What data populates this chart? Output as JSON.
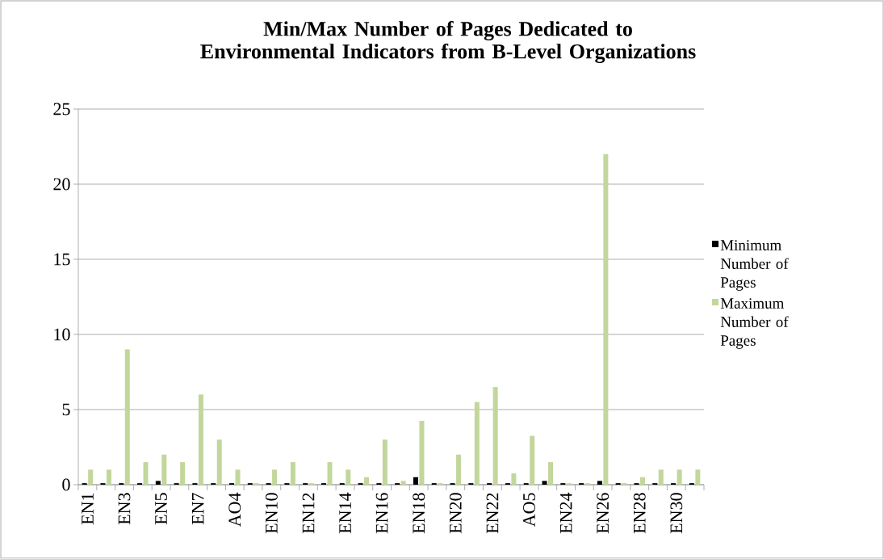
{
  "chart_data": {
    "type": "bar",
    "title": "Min/Max Number of Pages Dedicated to Environmental Indicators from B-Level Organizations",
    "categories": [
      "EN1",
      null,
      "EN3",
      null,
      "EN5",
      null,
      "EN7",
      null,
      "AO4",
      null,
      "EN10",
      null,
      "EN12",
      null,
      "EN14",
      null,
      "EN16",
      null,
      "EN18",
      null,
      "EN20",
      null,
      "EN22",
      null,
      "AO5",
      null,
      "EN24",
      null,
      "EN26",
      null,
      "EN28",
      null,
      "EN30",
      null
    ],
    "series": [
      {
        "name": "Minimum Number of Pages",
        "color": "#000000",
        "values": [
          0.1,
          0.1,
          0.1,
          0.1,
          0.25,
          0.1,
          0.1,
          0.1,
          0.1,
          0.1,
          0.1,
          0.1,
          0.1,
          0.1,
          0.1,
          0.1,
          0.1,
          0.1,
          0.5,
          0.1,
          0.1,
          0.1,
          0.1,
          0.1,
          0.1,
          0.25,
          0.1,
          0.1,
          0.25,
          0.1,
          0.1,
          0.1,
          0.1,
          0.1
        ]
      },
      {
        "name": "Maximum Number of Pages",
        "color": "#c3d69b",
        "values": [
          1,
          1,
          9,
          1.5,
          2,
          1.5,
          6,
          3,
          1,
          0.1,
          1,
          1.5,
          0.1,
          1.5,
          1,
          0.5,
          3,
          0.25,
          4.25,
          0.1,
          2,
          5.5,
          6.5,
          0.75,
          3.25,
          1.5,
          0.1,
          0.1,
          22,
          0.1,
          0.5,
          1,
          1,
          1
        ]
      }
    ],
    "ylim": [
      0,
      25
    ],
    "yticks": [
      0,
      5,
      10,
      15,
      20,
      25
    ],
    "grid": "y",
    "legend": "right"
  }
}
